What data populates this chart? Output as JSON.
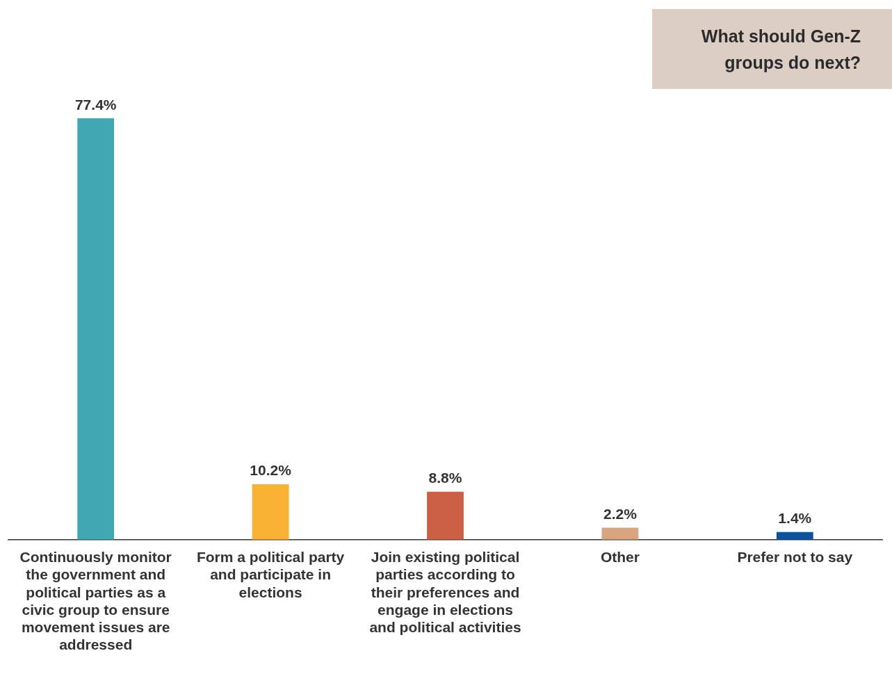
{
  "chart_data": {
    "type": "bar",
    "title": "What should Gen-Z groups do next?",
    "categories": [
      "Continuously monitor the government and political parties as a civic group to ensure movement issues are addressed",
      "Form a political party and participate in elections",
      "Join existing political parties according to their preferences and engage in elections and political activities",
      "Other",
      "Prefer not to say"
    ],
    "values": [
      77.4,
      10.2,
      8.8,
      2.2,
      1.4
    ],
    "colors": [
      "#41a8b3",
      "#f9b234",
      "#cc6045",
      "#d9a57e",
      "#0d52a0"
    ],
    "value_labels": [
      "77.4%",
      "10.2%",
      "8.8%",
      "2.2%",
      "1.4%"
    ],
    "grid": false,
    "legend": false,
    "tick_labels": "x"
  }
}
